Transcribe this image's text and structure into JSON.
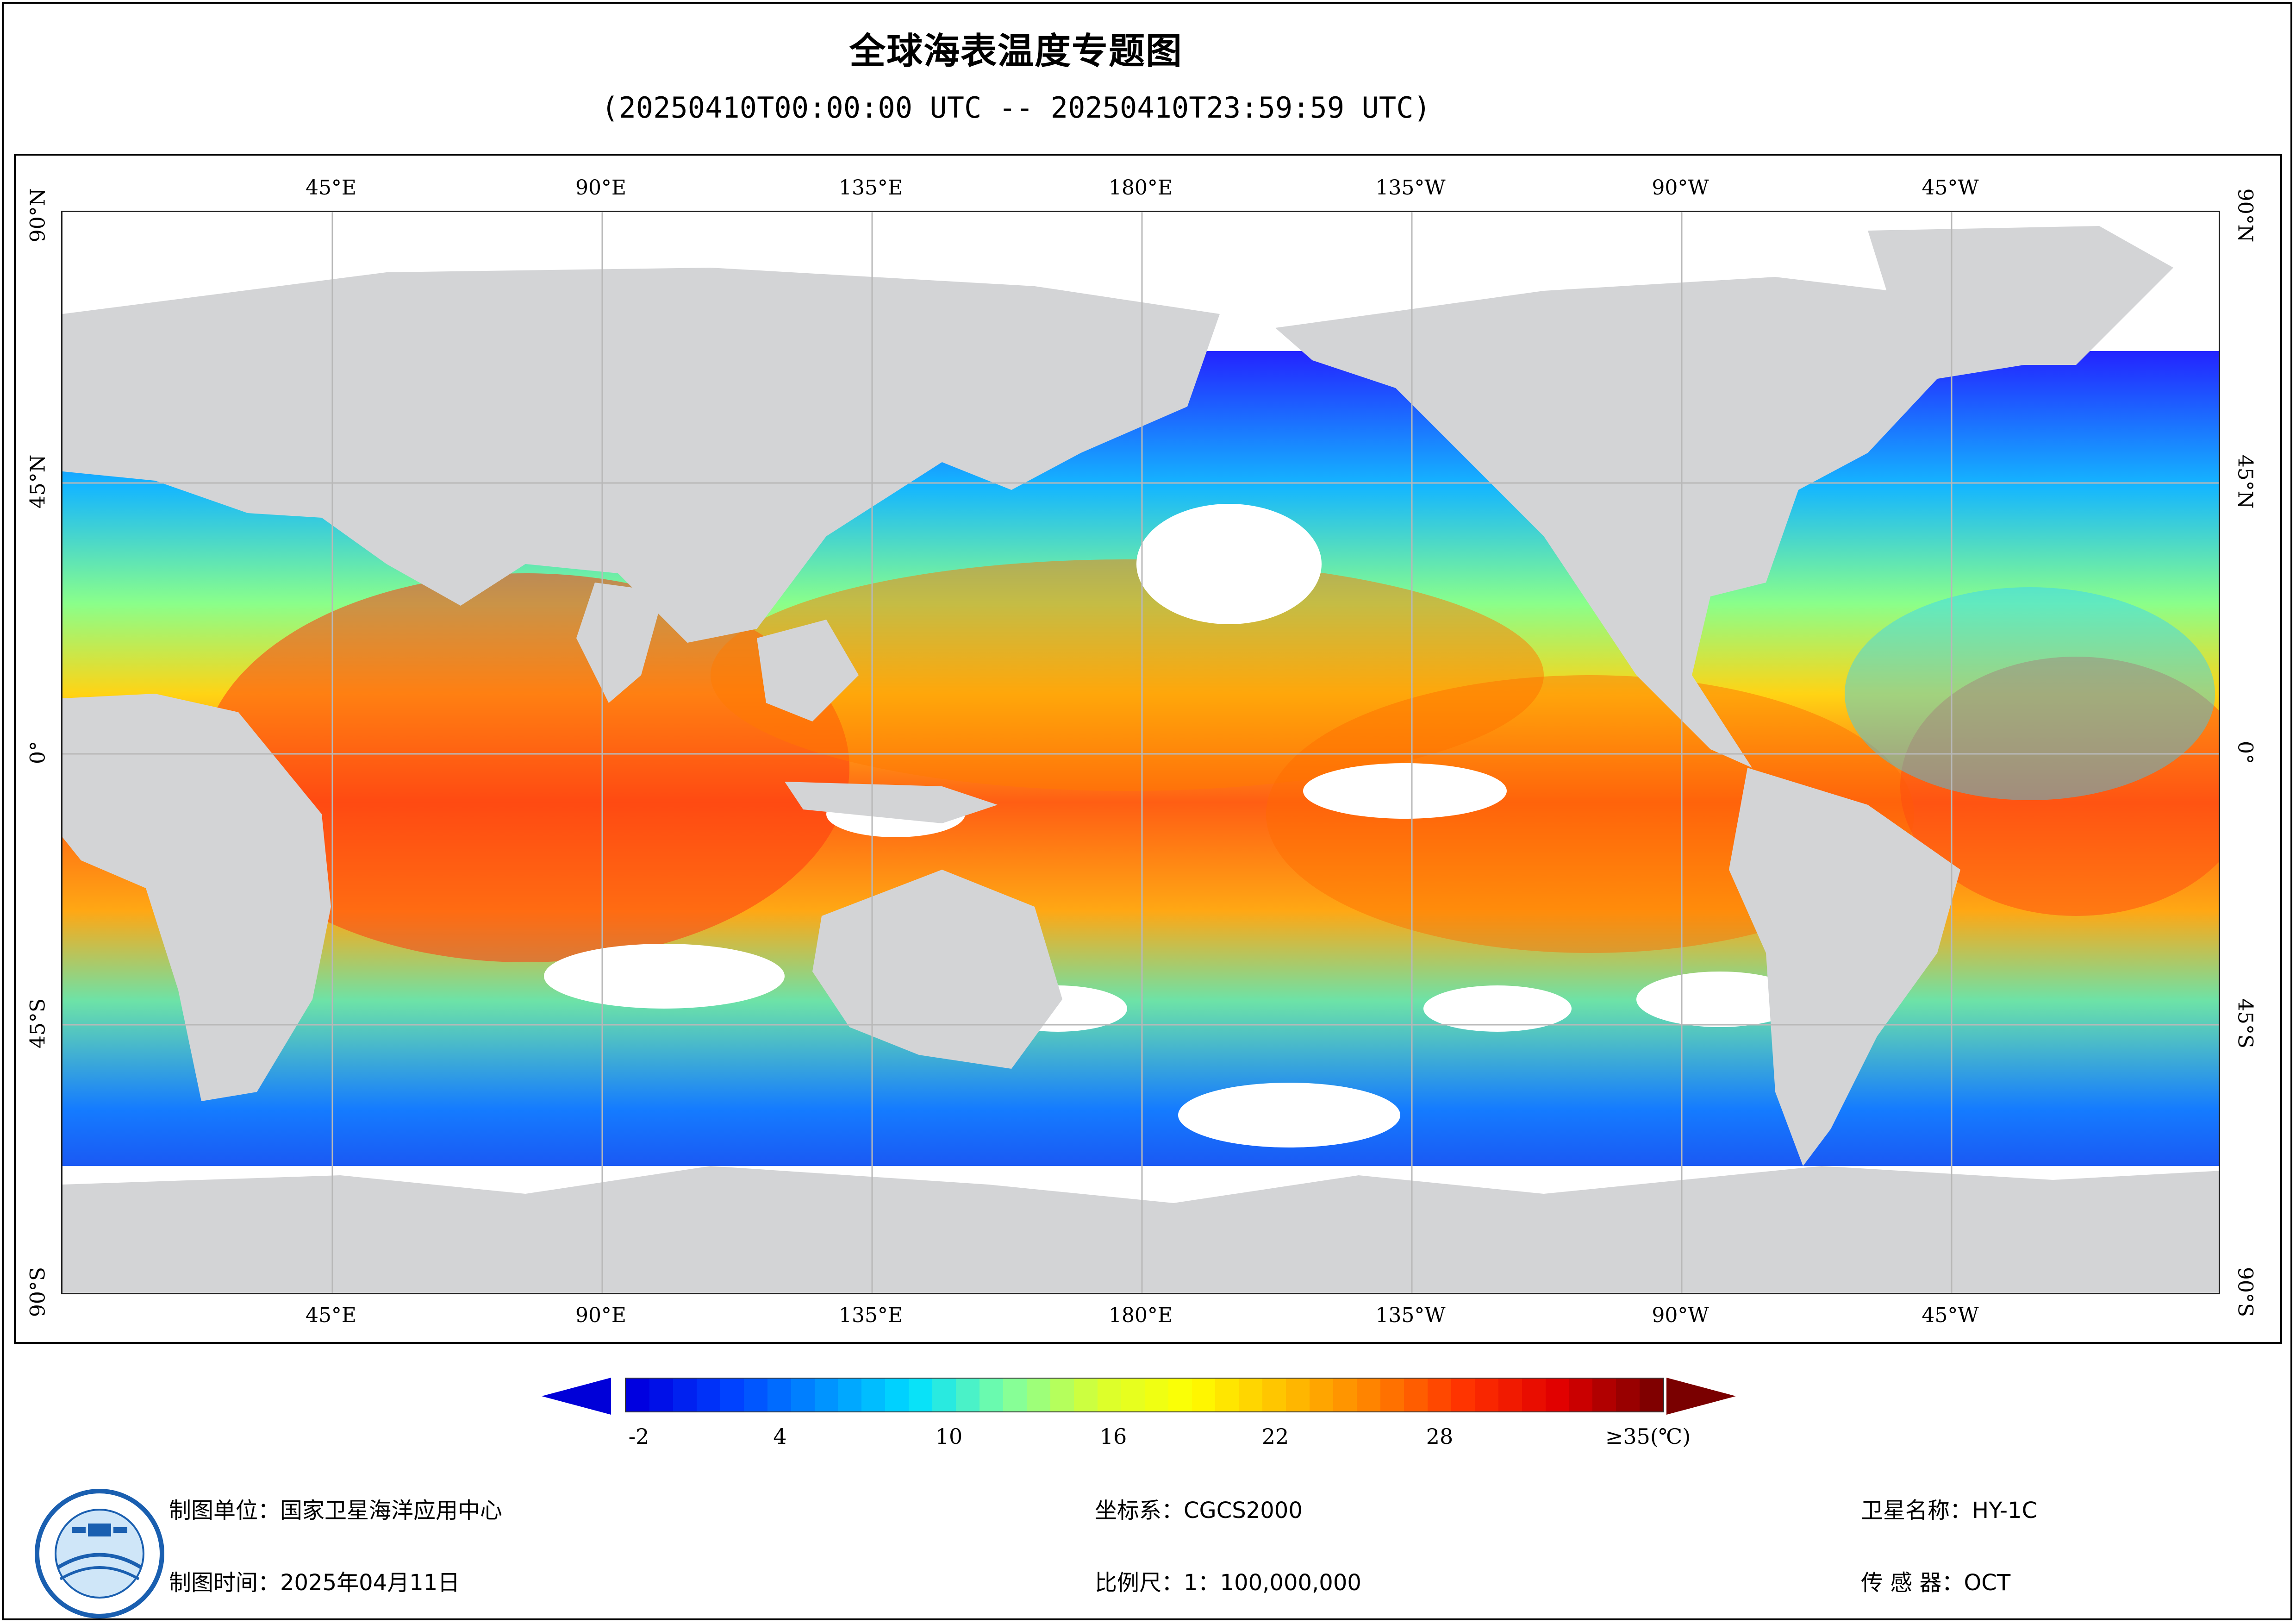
{
  "title": "全球海表温度专题图",
  "subtitle": "(20250410T00:00:00 UTC -- 20250410T23:59:59 UTC)",
  "map": {
    "top_ticks": [
      "45°E",
      "90°E",
      "135°E",
      "180°E",
      "135°W",
      "90°W",
      "45°W"
    ],
    "bottom_ticks": [
      "45°E",
      "90°E",
      "135°E",
      "180°E",
      "135°W",
      "90°W",
      "45°W"
    ],
    "left_ticks": [
      "90°N",
      "45°N",
      "0°",
      "45°S",
      "90°S"
    ],
    "right_ticks": [
      "90°N",
      "45°N",
      "0°",
      "45°S",
      "90°S"
    ],
    "land_color": "#d3d4d6",
    "cloud_color": "#ffffff",
    "grid_color": "#b8b8b8"
  },
  "legend": {
    "labels": [
      "-2",
      "4",
      "10",
      "16",
      "22",
      "28",
      "≥35(℃)"
    ],
    "values": [
      -2,
      4,
      10,
      16,
      22,
      28,
      35
    ],
    "min": -2,
    "max": 35,
    "colors": [
      "#0000e0",
      "#0040ff",
      "#0090ff",
      "#00e0ff",
      "#7fffa0",
      "#d8ff30",
      "#ffff00",
      "#ffc000",
      "#ff8000",
      "#ff3000",
      "#e00000",
      "#800000"
    ],
    "under_color": "#0000d8",
    "over_color": "#7a0000"
  },
  "footer": {
    "mapping_unit": "制图单位：国家卫星海洋应用中心",
    "mapping_time": "制图时间：2025年04月11日",
    "coordinate_system": "坐标系：CGCS2000",
    "scale": "比例尺：1：100,000,000",
    "satellite": "卫星名称：HY-1C",
    "sensor": "传 感 器：OCT"
  }
}
